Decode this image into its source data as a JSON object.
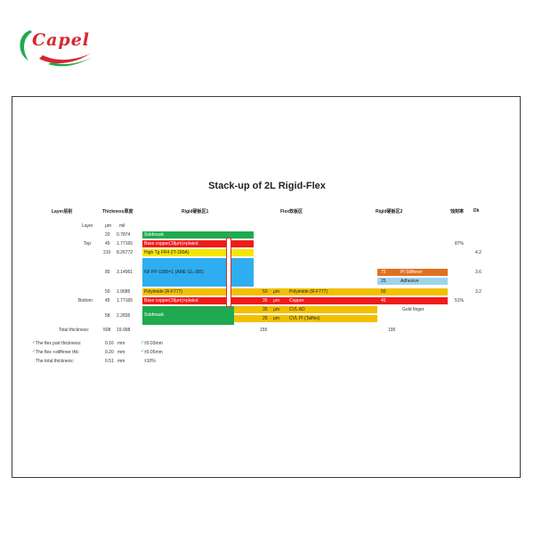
{
  "logo": {
    "text": "Capel"
  },
  "doc": {
    "title": "Stack-up of 2L Rigid-Flex",
    "headers": {
      "layer": "Layer层别",
      "thickness": "Thickness厚度",
      "rigid1": "Rigid硬板区1",
      "flex": "Flex软板区",
      "rigid2": "Rigid硬板区2",
      "etch": "蚀刻率",
      "dk": "Dk"
    },
    "units": {
      "layer": "Layer",
      "um": "μm",
      "mil": "mil"
    },
    "rows": [
      {
        "layer": "",
        "um": "20",
        "mil": "0.7874",
        "rigid1": "Soldmask",
        "color": "green"
      },
      {
        "layer": "Top",
        "um": "45",
        "mil": "1.77165",
        "rigid1": "Base copper(18μm)+plated",
        "color": "red",
        "etch": "87%"
      },
      {
        "layer": "",
        "um": "210",
        "mil": "8.26772",
        "rigid1": "High Tg FR4 (IT-180A)",
        "color": "yellow",
        "dk": "4.2"
      },
      {
        "layer": "",
        "um": "80",
        "mil": "3.14961",
        "rigid1": "NF PP-1080×1 (AME GL-305)",
        "color": "blue",
        "dk": "3.6"
      },
      {
        "layer": "",
        "um": "50",
        "mil": "1.9685",
        "rigid1": "Polyimide (R-F777)",
        "color": "gold",
        "dk": "3.2"
      },
      {
        "layer": "Bottom",
        "um": "45",
        "mil": "1.77165",
        "rigid1": "Base copper(18μm)+plated",
        "color": "red",
        "etch": "51%"
      },
      {
        "layer": "",
        "um": "58",
        "mil": "2.2835",
        "rigid1": "Soldmask",
        "color": "green"
      }
    ],
    "flex_rows": [
      {
        "um": "50",
        "unit": "μm",
        "label": "Polyimide (R-F777)",
        "color": "gold"
      },
      {
        "um": "35",
        "unit": "μm",
        "label": "Copper",
        "color": "red"
      },
      {
        "um": "35",
        "unit": "μm",
        "label": "CVL AD",
        "color": "gold"
      },
      {
        "um": "25",
        "unit": "μm",
        "label": "CVL PI (Taiflex)",
        "color": "gold"
      }
    ],
    "rigid2": [
      {
        "value": "75",
        "label": "PI Stiffener",
        "color": "orange"
      },
      {
        "value": "25",
        "label": "Adhesive",
        "color": "lblue"
      },
      {
        "value": "50",
        "label": "",
        "color": "gold"
      },
      {
        "value": "45",
        "label": "",
        "color": "red"
      }
    ],
    "gold_finger": "Gold finger",
    "total": {
      "label": "Total thickness:",
      "um": "508",
      "mil": "19.998",
      "flex": "155",
      "rigid2": "195"
    },
    "notes": [
      {
        "label": "The flex part thickness:",
        "value": "0.16",
        "unit": "mm",
        "tol": "±0.03mm"
      },
      {
        "label": "The flex +stiffener thk:",
        "value": "0.20",
        "unit": "mm",
        "tol": "±0.05mm"
      },
      {
        "label": "The total thickness:",
        "value": "0.51",
        "unit": "mm",
        "tol": "±10%"
      }
    ]
  }
}
